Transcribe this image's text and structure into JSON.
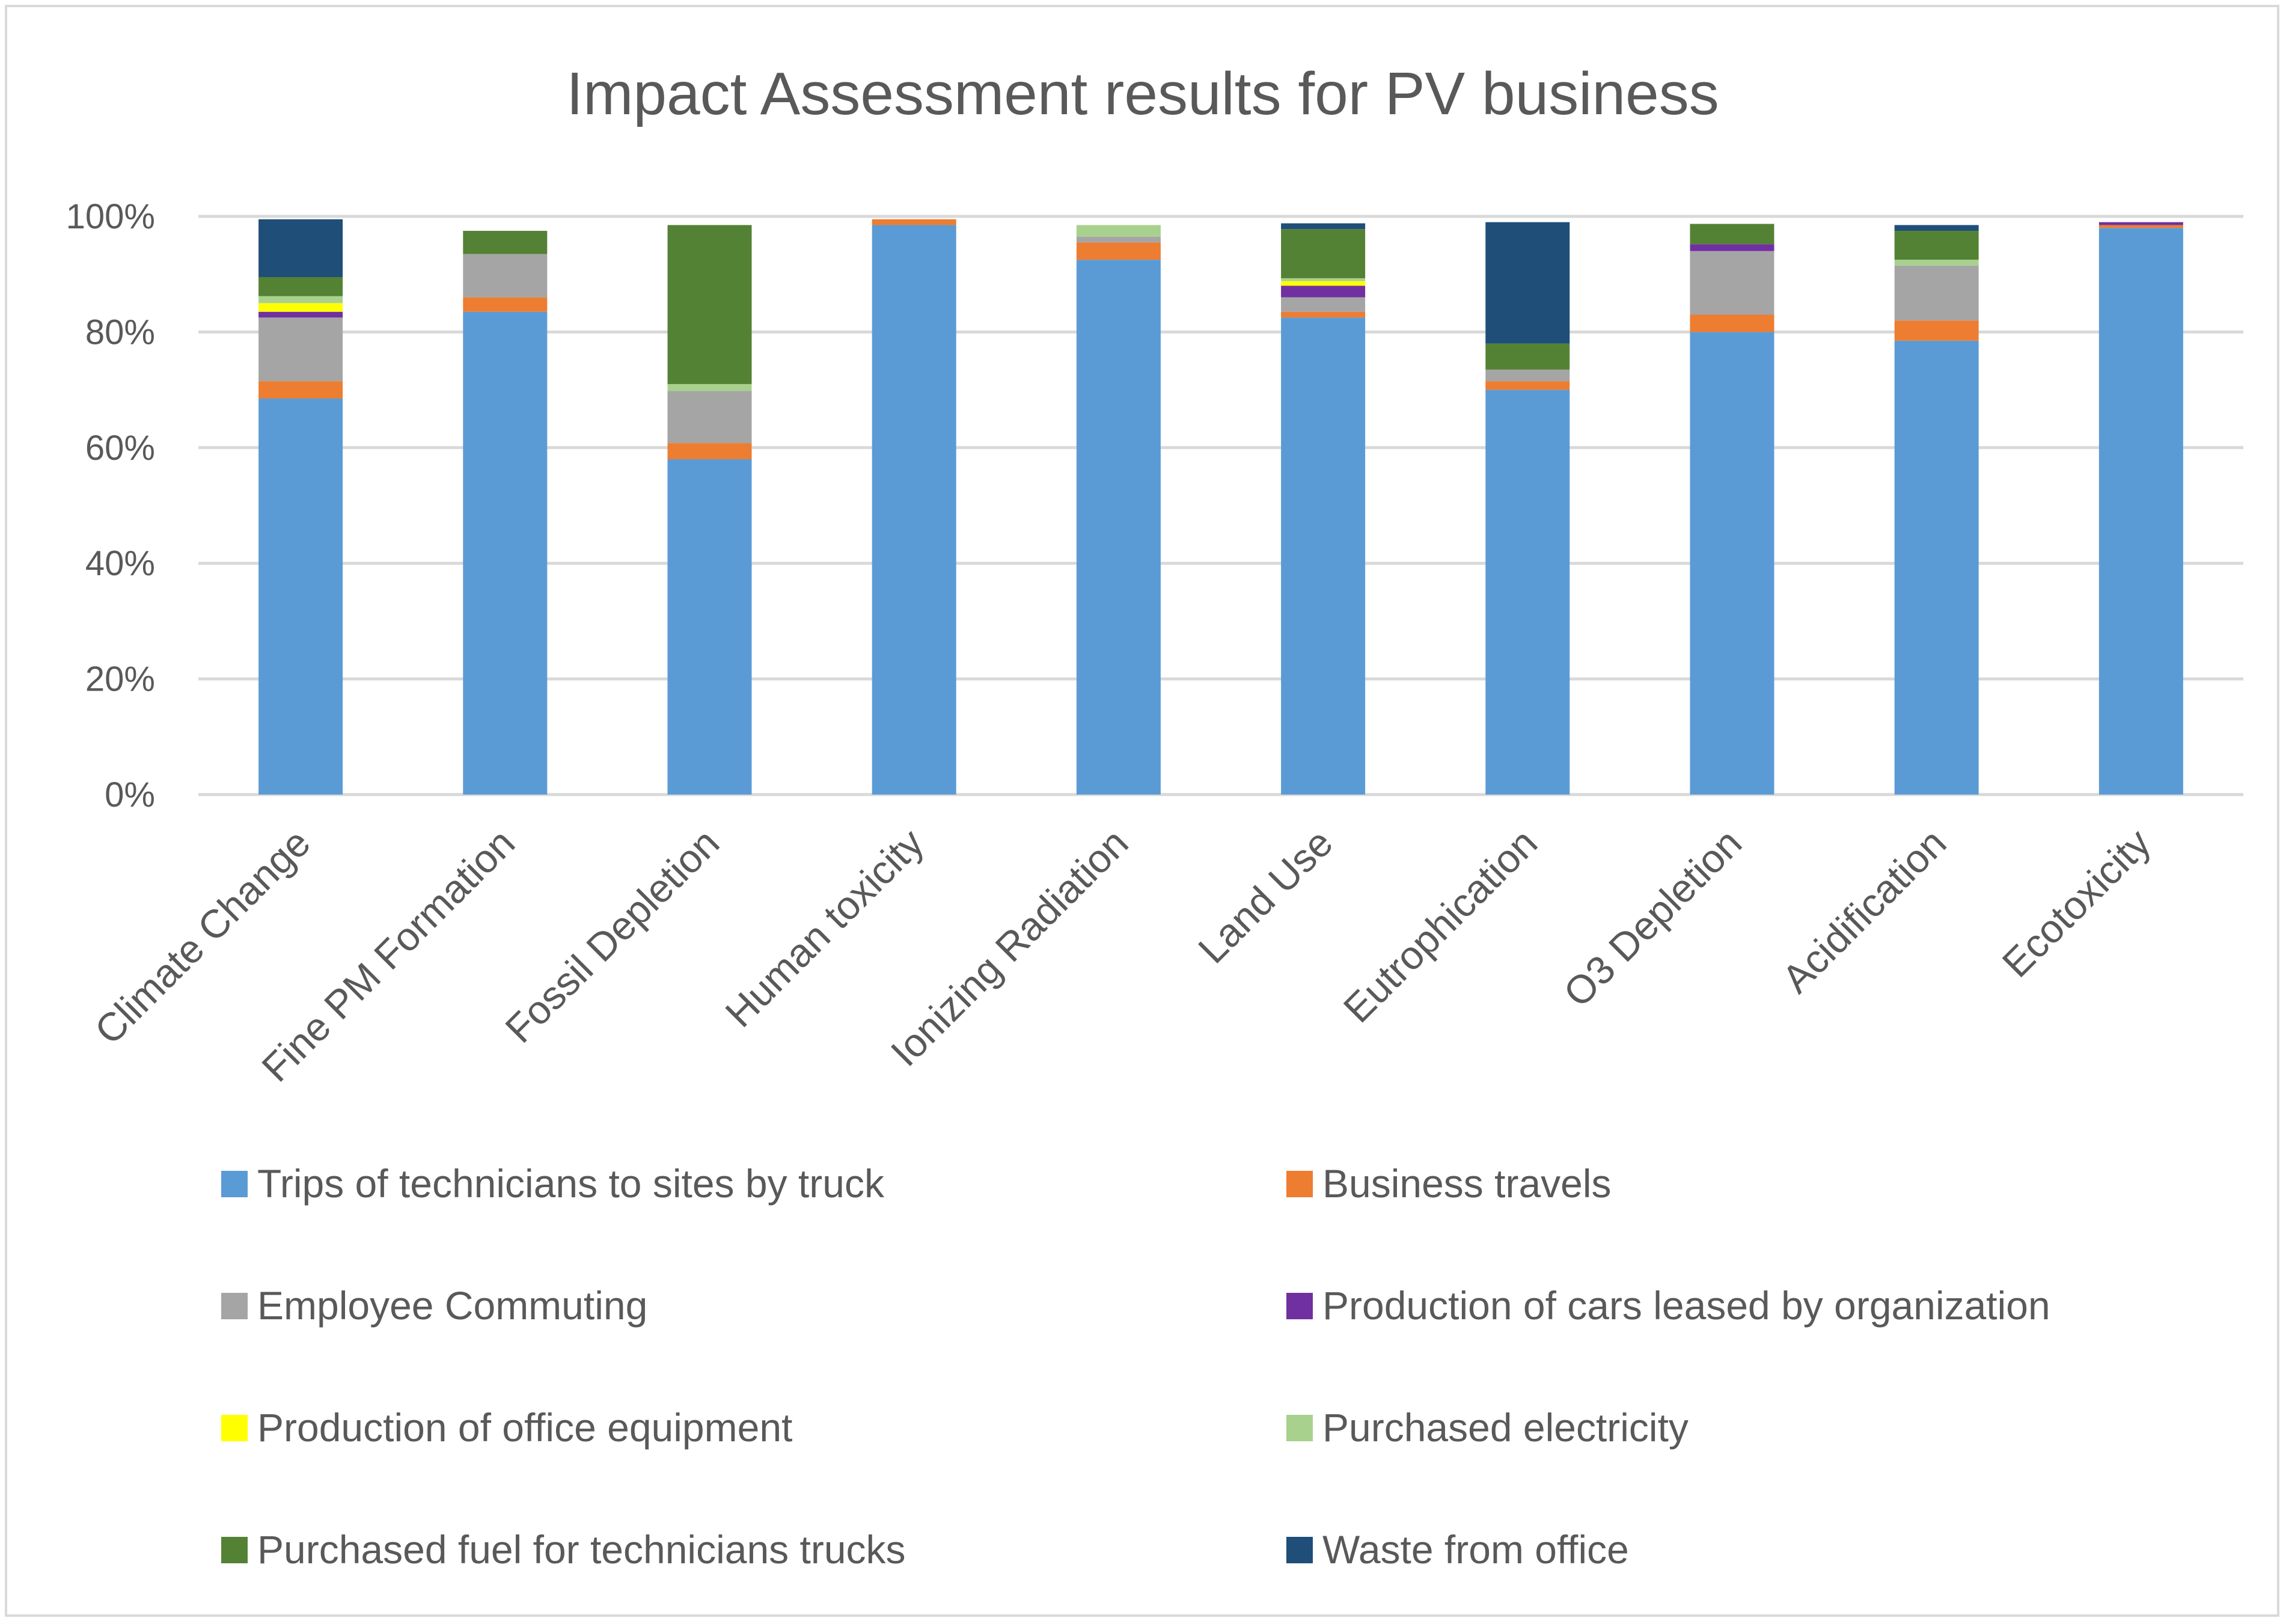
{
  "chart_data": {
    "type": "bar",
    "stacked": true,
    "title": "Impact Assessment results for PV business",
    "xlabel": "",
    "ylabel": "",
    "ylim": [
      0,
      100
    ],
    "yticks": [
      "0%",
      "20%",
      "40%",
      "60%",
      "80%",
      "100%"
    ],
    "grid": true,
    "legend_position": "bottom",
    "categories": [
      "Climate Change",
      "Fine PM Formation",
      "Fossil Depletion",
      "Human toxicity",
      "Ionizing Radiation",
      "Land Use",
      "Eutrophication",
      "O3 Depletion",
      "Acidification",
      "Ecotoxicity"
    ],
    "series": [
      {
        "name": "Trips of technicians to sites by truck",
        "color": "#5b9bd5",
        "values": [
          68.5,
          83.5,
          58.0,
          98.5,
          92.5,
          82.5,
          70.0,
          80.0,
          78.5,
          98.0
        ]
      },
      {
        "name": "Business travels",
        "color": "#ed7d31",
        "values": [
          3.0,
          2.5,
          2.8,
          1.0,
          3.0,
          1.0,
          1.5,
          3.0,
          3.5,
          0.5
        ]
      },
      {
        "name": "Employee Commuting",
        "color": "#a5a5a5",
        "values": [
          11.0,
          7.5,
          9.0,
          0.0,
          1.0,
          2.5,
          2.0,
          11.0,
          9.5,
          0.0
        ]
      },
      {
        "name": "Production of cars leased by organization",
        "color": "#7030a0",
        "values": [
          1.0,
          0.0,
          0.0,
          0.0,
          0.0,
          2.0,
          0.0,
          1.2,
          0.0,
          0.5
        ]
      },
      {
        "name": "Production of office equipment",
        "color": "#ffff00",
        "values": [
          1.5,
          0.0,
          0.0,
          0.0,
          0.0,
          0.8,
          0.0,
          0.0,
          0.0,
          0.0
        ]
      },
      {
        "name": "Purchased electricity",
        "color": "#a9d18e",
        "values": [
          1.2,
          0.0,
          1.2,
          0.0,
          2.0,
          0.5,
          0.0,
          0.0,
          1.0,
          0.0
        ]
      },
      {
        "name": "Purchased fuel for technicians trucks",
        "color": "#548235",
        "values": [
          3.3,
          4.0,
          27.5,
          0.0,
          0.0,
          8.5,
          4.5,
          3.5,
          5.0,
          0.0
        ]
      },
      {
        "name": "Waste from office",
        "color": "#1f4e79",
        "values": [
          10.0,
          0.0,
          0.0,
          0.0,
          0.0,
          1.0,
          21.0,
          0.0,
          1.0,
          0.0
        ]
      }
    ]
  }
}
